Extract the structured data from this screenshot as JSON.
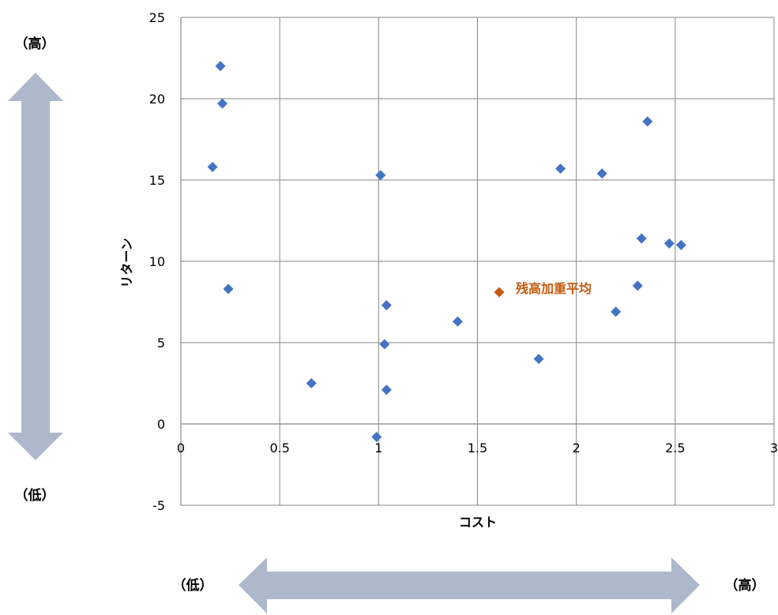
{
  "chart_data": {
    "type": "scatter",
    "xlabel": "コスト",
    "ylabel": "リターン",
    "xlim": [
      0,
      3
    ],
    "ylim": [
      -5,
      25
    ],
    "x_ticks": [
      "0",
      "0.5",
      "1",
      "1.5",
      "2",
      "2.5",
      "3"
    ],
    "y_ticks": [
      "-5",
      "0",
      "5",
      "10",
      "15",
      "20",
      "25"
    ],
    "grid": true,
    "series": [
      {
        "color": "#4472C4",
        "points": [
          {
            "x": 0.16,
            "y": 15.8
          },
          {
            "x": 0.2,
            "y": 22.0
          },
          {
            "x": 0.21,
            "y": 19.7
          },
          {
            "x": 0.24,
            "y": 8.3
          },
          {
            "x": 0.66,
            "y": 2.5
          },
          {
            "x": 0.99,
            "y": -0.8
          },
          {
            "x": 1.01,
            "y": 15.3
          },
          {
            "x": 1.03,
            "y": 4.9
          },
          {
            "x": 1.04,
            "y": 7.3
          },
          {
            "x": 1.04,
            "y": 2.1
          },
          {
            "x": 1.4,
            "y": 6.3
          },
          {
            "x": 1.81,
            "y": 4.0
          },
          {
            "x": 1.92,
            "y": 15.7
          },
          {
            "x": 2.13,
            "y": 15.4
          },
          {
            "x": 2.2,
            "y": 6.9
          },
          {
            "x": 2.31,
            "y": 8.5
          },
          {
            "x": 2.33,
            "y": 11.4
          },
          {
            "x": 2.36,
            "y": 18.6
          },
          {
            "x": 2.47,
            "y": 11.1
          },
          {
            "x": 2.53,
            "y": 11.0
          }
        ]
      },
      {
        "color": "#C55A11",
        "points": [
          {
            "x": 1.61,
            "y": 8.1
          }
        ],
        "label": "残高加重平均"
      }
    ]
  },
  "side_labels": {
    "y_high": "（高）",
    "y_low": "（低）",
    "x_low": "（低）",
    "x_high": "（高）"
  },
  "colors": {
    "arrow": "#ADB9CA",
    "grid": "#868686",
    "point": "#4472C4",
    "highlight": "#C55A11"
  }
}
